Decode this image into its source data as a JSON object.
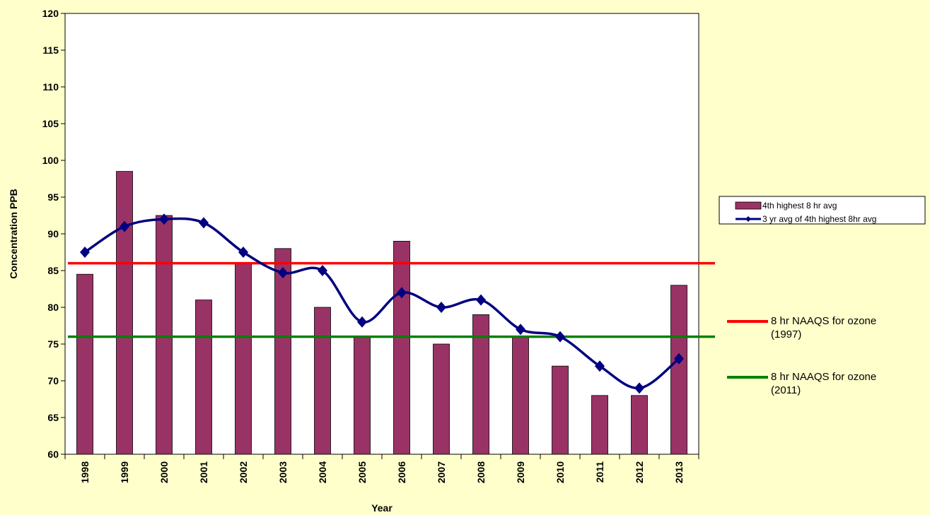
{
  "chart_data": {
    "type": "bar-line",
    "x_label": "Year",
    "y_label": "Concentration PPB",
    "categories": [
      "1998",
      "1999",
      "2000",
      "2001",
      "2002",
      "2003",
      "2004",
      "2005",
      "2006",
      "2007",
      "2008",
      "2009",
      "2010",
      "2011",
      "2012",
      "2013"
    ],
    "series": [
      {
        "name": "4th highest 8 hr avg",
        "type": "bar",
        "color": "#993366",
        "values": [
          84.5,
          98.5,
          92.5,
          81,
          86,
          88,
          80,
          76,
          89,
          75,
          79,
          76,
          72,
          68,
          68,
          83
        ]
      },
      {
        "name": "3 yr avg of 4th highest 8hr avg",
        "type": "line",
        "color": "#000080",
        "values": [
          87.5,
          91,
          92,
          91.5,
          87.5,
          84.7,
          85,
          78,
          82,
          80,
          81,
          77,
          76,
          72,
          69,
          73
        ]
      }
    ],
    "reference_lines": [
      {
        "name": "8 hr NAAQS for ozone (1997)",
        "value": 86,
        "color": "#ff0000"
      },
      {
        "name": "8 hr NAAQS for ozone (2011)",
        "value": 76,
        "color": "#008000"
      }
    ],
    "ylim": [
      60,
      120
    ],
    "yticks": [
      60,
      65,
      70,
      75,
      80,
      85,
      90,
      95,
      100,
      105,
      110,
      115,
      120
    ],
    "grid": false,
    "legend": "right"
  }
}
